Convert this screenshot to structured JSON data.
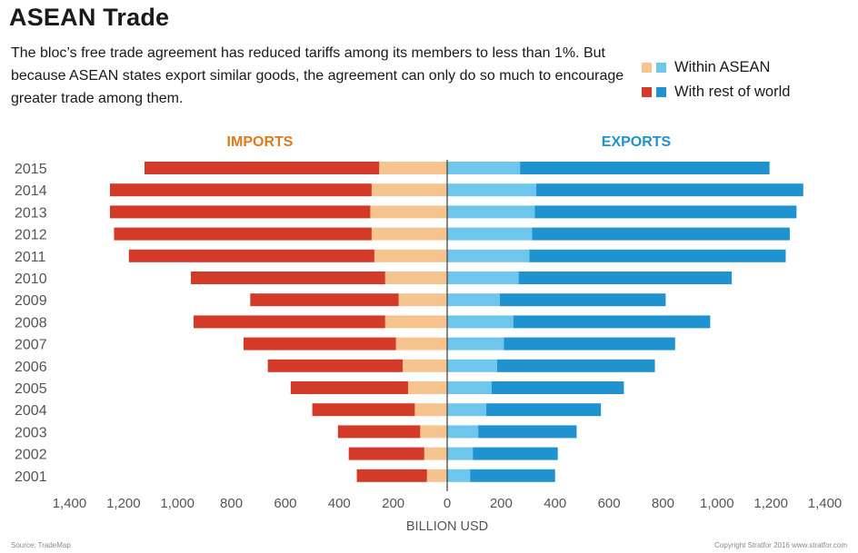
{
  "title": "ASEAN Trade",
  "subtitle": "The bloc’s free trade agreement has reduced tariffs among its members to less than 1%. But because ASEAN states export similar goods, the agreement can only do so much to encourage greater trade among them.",
  "legend": {
    "items": [
      {
        "label": "Within ASEAN",
        "colors": [
          "#f6c48e",
          "#6fc6ec"
        ]
      },
      {
        "label": "With rest of world",
        "colors": [
          "#d33a27",
          "#1f93cf"
        ]
      }
    ]
  },
  "footer": {
    "source": "Source: TradeMap",
    "copyright": "Copyright Stratfor 2016   www.stratfor.com"
  },
  "chart_data": {
    "type": "bar",
    "orientation": "horizontal-diverging",
    "panels": {
      "left": "IMPORTS",
      "right": "EXPORTS"
    },
    "xlabel": "BILLION USD",
    "xlim": [
      -1400,
      1400
    ],
    "xticks": [
      "1,400",
      "1,200",
      "1,000",
      "800",
      "600",
      "400",
      "200",
      "0",
      "200",
      "400",
      "600",
      "800",
      "1,000",
      "1,200",
      "1,400"
    ],
    "categories": [
      "2015",
      "2014",
      "2013",
      "2012",
      "2011",
      "2010",
      "2009",
      "2008",
      "2007",
      "2006",
      "2005",
      "2004",
      "2003",
      "2002",
      "2001"
    ],
    "series": [
      {
        "name": "Within ASEAN",
        "side": "IMPORTS",
        "color": "#f6c48e",
        "values": [
          252,
          280,
          285,
          280,
          270,
          230,
          180,
          230,
          190,
          165,
          145,
          120,
          100,
          85,
          75
        ]
      },
      {
        "name": "With rest of world",
        "side": "IMPORTS",
        "color": "#d33a27",
        "values": [
          870,
          970,
          965,
          955,
          910,
          720,
          550,
          710,
          565,
          500,
          435,
          380,
          305,
          280,
          260
        ]
      },
      {
        "name": "Within ASEAN",
        "side": "EXPORTS",
        "color": "#6fc6ec",
        "values": [
          270,
          330,
          325,
          315,
          305,
          265,
          195,
          245,
          210,
          185,
          165,
          145,
          115,
          95,
          85
        ]
      },
      {
        "name": "With rest of world",
        "side": "EXPORTS",
        "color": "#1f93cf",
        "values": [
          925,
          990,
          970,
          955,
          950,
          790,
          615,
          730,
          635,
          585,
          490,
          425,
          365,
          315,
          315
        ]
      }
    ],
    "colors": {
      "imports_header": "#e07a1e",
      "exports_header": "#1f93cf",
      "axis": "#3a3a3a"
    }
  }
}
